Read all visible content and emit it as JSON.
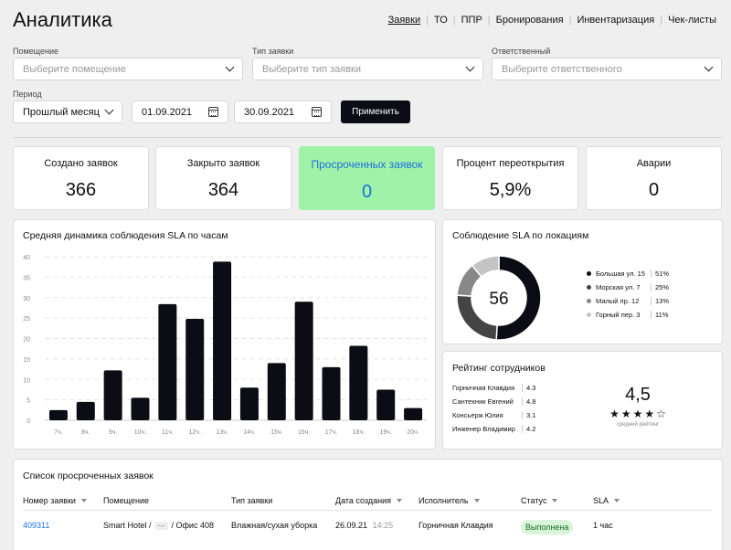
{
  "header": {
    "title": "Аналитика",
    "nav": [
      {
        "label": "Заявки",
        "active": true
      },
      {
        "label": "ТО",
        "active": false
      },
      {
        "label": "ППР",
        "active": false
      },
      {
        "label": "Бронирования",
        "active": false
      },
      {
        "label": "Инвентаризация",
        "active": false
      },
      {
        "label": "Чек-листы",
        "active": false
      }
    ]
  },
  "filters": {
    "room": {
      "label": "Помещение",
      "placeholder": "Выберите помещение"
    },
    "type": {
      "label": "Тип заявки",
      "placeholder": "Выберите тип заявки"
    },
    "assignee": {
      "label": "Ответственный",
      "placeholder": "Выберите ответственного"
    },
    "period": {
      "label": "Период",
      "value": "Прошлый месяц"
    },
    "date_from": "01.09.2021",
    "date_to": "30.09.2021",
    "apply": "Применить"
  },
  "kpis": [
    {
      "label": "Создано заявок",
      "value": "366",
      "highlight": false
    },
    {
      "label": "Закрыто заявок",
      "value": "364",
      "highlight": false
    },
    {
      "label": "Просроченных заявок",
      "value": "0",
      "highlight": true
    },
    {
      "label": "Процент переоткрытия",
      "value": "5,9%",
      "highlight": false
    },
    {
      "label": "Аварии",
      "value": "0",
      "highlight": false
    }
  ],
  "sla_hourly": {
    "title": "Средняя динамика соблюдения SLA по часам"
  },
  "sla_locations": {
    "title": "Соблюдение SLA по локациям",
    "center_value": "56"
  },
  "rating": {
    "title": "Рейтинг сотрудников",
    "employees": [
      {
        "name": "Горничная Клавдия",
        "score": "4.3"
      },
      {
        "name": "Сантехник Евгений",
        "score": "4.8"
      },
      {
        "name": "Консьерж Юлия",
        "score": "3.1"
      },
      {
        "name": "Инженер Владимир",
        "score": "4.2"
      }
    ],
    "average": "4,5",
    "average_label": "средний рейтинг",
    "stars": 4
  },
  "overdue": {
    "title": "Список просроченных заявок",
    "columns": [
      "Номер заявки",
      "Помещение",
      "Тип заявки",
      "Дата создания",
      "Исполнитель",
      "Статус",
      "SLA"
    ],
    "rows": [
      {
        "number": "409311",
        "room_start": "Smart Hotel /",
        "room_ellipsis": "···",
        "room_end": "/ Офис 408",
        "type": "Влажная/сухая уборка",
        "date": "26.09.21",
        "time": "14:25",
        "assignee": "Горничная Клавдия",
        "status": "Выполнена",
        "sla": "1 час"
      }
    ]
  },
  "colors": {
    "accent_dark": "#0c0c14",
    "highlight_green": "#9ff2a7",
    "highlight_text": "#1f6fe0",
    "link": "#1f6fe0",
    "success_bg": "#d8f5d9"
  },
  "chart_data": [
    {
      "type": "bar",
      "title": "Средняя динамика соблюдения SLA по часам",
      "categories": [
        "7ч.",
        "8ч.",
        "9ч.",
        "10ч.",
        "11ч.",
        "12ч.",
        "13ч.",
        "14ч.",
        "15ч.",
        "16ч.",
        "17ч.",
        "18ч.",
        "19ч.",
        "20ч."
      ],
      "values": [
        2.5,
        4.5,
        12.2,
        5.5,
        28.4,
        24.8,
        38.8,
        8,
        14,
        29,
        13,
        18.2,
        7.5,
        3
      ],
      "yticks": [
        0,
        5,
        10,
        15,
        20,
        25,
        30,
        35,
        40
      ],
      "ylim": [
        0,
        40
      ],
      "grid": true,
      "color": "#0c0c14"
    },
    {
      "type": "pie",
      "title": "Соблюдение SLA по локациям",
      "categories": [
        "Большая ул. 15",
        "Морская ул. 7",
        "Малый пр. 12",
        "Горный пер. 3"
      ],
      "values": [
        51,
        25,
        13,
        11
      ],
      "labels": [
        "51%",
        "25%",
        "13%",
        "11%"
      ],
      "colors": [
        "#0c0c14",
        "#444444",
        "#888888",
        "#c4c4c4"
      ],
      "center_label": "56",
      "legend": "right"
    }
  ]
}
